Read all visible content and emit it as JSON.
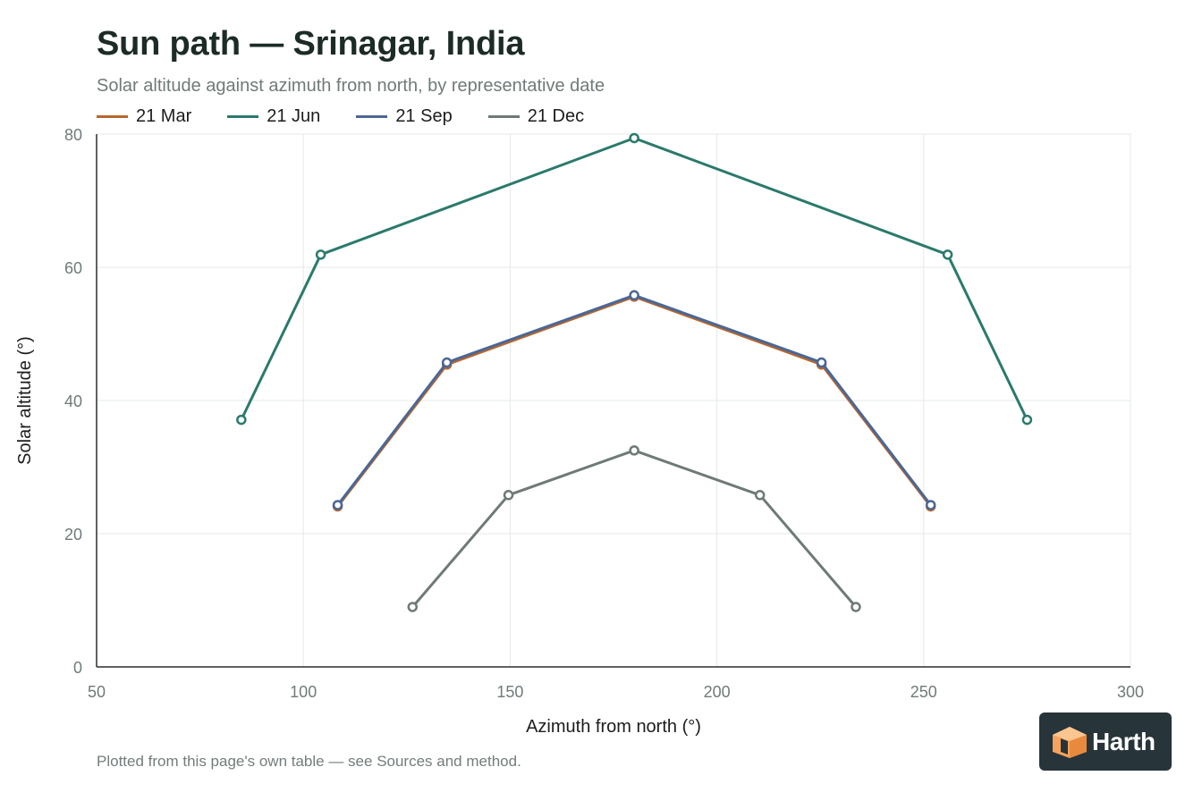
{
  "chart_data": {
    "type": "line",
    "title": "Sun path — Srinagar, India",
    "subtitle": "Solar altitude against azimuth from north, by representative date",
    "xlabel": "Azimuth from north (°)",
    "ylabel": "Solar altitude (°)",
    "xlim": [
      50,
      300
    ],
    "ylim": [
      0,
      80
    ],
    "xticks": [
      50,
      100,
      150,
      200,
      250,
      300
    ],
    "yticks": [
      0,
      20,
      40,
      60,
      80
    ],
    "grid": true,
    "legend_position": "top-left",
    "series": [
      {
        "name": "21 Mar",
        "color": "#b8672e",
        "points": [
          [
            108.3,
            24.1
          ],
          [
            134.7,
            45.4
          ],
          [
            180,
            55.6
          ],
          [
            225.3,
            45.4
          ],
          [
            251.7,
            24.1
          ]
        ]
      },
      {
        "name": "21 Jun",
        "color": "#2a7a6c",
        "points": [
          [
            85,
            37.1
          ],
          [
            104.2,
            61.9
          ],
          [
            180,
            79.4
          ],
          [
            255.8,
            61.9
          ],
          [
            275,
            37.1
          ]
        ]
      },
      {
        "name": "21 Sep",
        "color": "#4a6796",
        "points": [
          [
            108.3,
            24.3
          ],
          [
            134.7,
            45.7
          ],
          [
            180,
            55.8
          ],
          [
            225.3,
            45.7
          ],
          [
            251.7,
            24.3
          ]
        ]
      },
      {
        "name": "21 Dec",
        "color": "#6e7a75",
        "points": [
          [
            126.4,
            9.0
          ],
          [
            149.6,
            25.8
          ],
          [
            180,
            32.5
          ],
          [
            210.4,
            25.8
          ],
          [
            233.6,
            9.0
          ]
        ]
      }
    ]
  },
  "footnote": "Plotted from this page's own table — see Sources and method.",
  "logo": {
    "text": "Harth"
  }
}
